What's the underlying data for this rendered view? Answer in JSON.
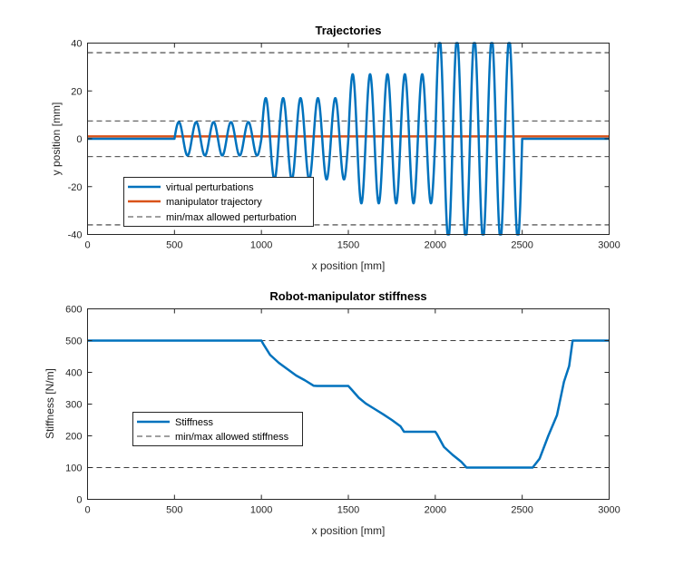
{
  "colors": {
    "perturbation": "#0072BD",
    "manipulator": "#D95319",
    "limits": "#000000",
    "stiffness": "#0072BD",
    "axes": "#262626"
  },
  "chart_data": [
    {
      "type": "line",
      "title": "Trajectories",
      "xlabel": "x position [mm]",
      "ylabel": "y position [mm]",
      "xlim": [
        0,
        3000
      ],
      "ylim": [
        -40,
        40
      ],
      "xticks": [
        0,
        500,
        1000,
        1500,
        2000,
        2500,
        3000
      ],
      "yticks": [
        -40,
        -20,
        0,
        20,
        40
      ],
      "grid": false,
      "legend_position": "bottom-left",
      "legend": [
        "virtual perturbations",
        "manipulator trajectory",
        "min/max allowed perturbation"
      ],
      "series": [
        {
          "name": "virtual perturbations",
          "style": "solid",
          "segments": [
            {
              "x_start": 0,
              "x_end": 500,
              "amplitude": 0,
              "wavelength": 100
            },
            {
              "x_start": 500,
              "x_end": 1000,
              "amplitude": 7,
              "wavelength": 100
            },
            {
              "x_start": 1000,
              "x_end": 1500,
              "amplitude": 17,
              "wavelength": 100
            },
            {
              "x_start": 1500,
              "x_end": 2000,
              "amplitude": 27,
              "wavelength": 100
            },
            {
              "x_start": 2000,
              "x_end": 2500,
              "amplitude": 42,
              "wavelength": 100
            },
            {
              "x_start": 2500,
              "x_end": 3000,
              "amplitude": 0,
              "wavelength": 100
            }
          ]
        },
        {
          "name": "manipulator trajectory",
          "style": "solid",
          "x": [
            0,
            3000
          ],
          "y": [
            1,
            1
          ]
        },
        {
          "name": "min/max allowed perturbation",
          "style": "dashed",
          "levels": [
            -36,
            -7.5,
            7.5,
            36
          ]
        }
      ]
    },
    {
      "type": "line",
      "title": "Robot-manipulator stiffness",
      "xlabel": "x position [mm]",
      "ylabel": "Stiffness [N/m]",
      "xlim": [
        0,
        3000
      ],
      "ylim": [
        0,
        600
      ],
      "xticks": [
        0,
        500,
        1000,
        1500,
        2000,
        2500,
        3000
      ],
      "yticks": [
        0,
        100,
        200,
        300,
        400,
        500,
        600
      ],
      "grid": false,
      "legend_position": "middle-left",
      "legend": [
        "Stiffness",
        "min/max allowed stiffness"
      ],
      "series": [
        {
          "name": "Stiffness",
          "style": "solid",
          "x": [
            0,
            1000,
            1010,
            1050,
            1100,
            1150,
            1200,
            1250,
            1300,
            1320,
            1500,
            1520,
            1560,
            1600,
            1650,
            1700,
            1750,
            1800,
            1820,
            2000,
            2010,
            2050,
            2100,
            2150,
            2180,
            2560,
            2600,
            2650,
            2700,
            2740,
            2770,
            2790,
            3000
          ],
          "y": [
            500,
            500,
            490,
            455,
            430,
            410,
            390,
            375,
            358,
            357,
            357,
            345,
            320,
            302,
            285,
            268,
            250,
            230,
            213,
            213,
            205,
            165,
            140,
            118,
            100,
            100,
            128,
            200,
            265,
            370,
            420,
            500,
            500
          ]
        },
        {
          "name": "min/max allowed stiffness",
          "style": "dashed",
          "levels": [
            100,
            500
          ]
        }
      ]
    }
  ]
}
